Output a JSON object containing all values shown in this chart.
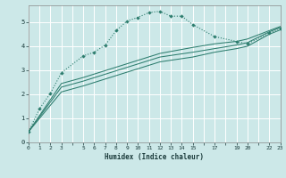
{
  "bg_color": "#cce8e8",
  "grid_color": "#ffffff",
  "grid_color_minor": "#e8d8d8",
  "line_color": "#2d7d6e",
  "xlabel": "Humidex (Indice chaleur)",
  "xlim": [
    0,
    23
  ],
  "ylim": [
    0,
    5.7
  ],
  "xtick_positions": [
    0,
    1,
    2,
    3,
    4,
    5,
    6,
    7,
    8,
    9,
    10,
    11,
    12,
    13,
    14,
    15,
    16,
    17,
    18,
    19,
    20,
    21,
    22,
    23
  ],
  "xtick_labels": [
    "0",
    "1",
    "2",
    "3",
    "",
    "5",
    "6",
    "7",
    "8",
    "9",
    "10",
    "11",
    "12",
    "13",
    "14",
    "15",
    "",
    "17",
    "",
    "19",
    "20",
    "",
    "22",
    "23"
  ],
  "ytick_positions": [
    0,
    1,
    2,
    3,
    4,
    5
  ],
  "ytick_labels": [
    "0",
    "1",
    "2",
    "3",
    "4",
    "5"
  ],
  "line1_x": [
    0,
    1,
    2,
    3,
    5,
    6,
    7,
    8,
    9,
    10,
    11,
    12,
    13,
    14,
    15,
    17,
    19,
    20,
    22,
    23
  ],
  "line1_y": [
    0.45,
    1.4,
    2.05,
    2.9,
    3.6,
    3.75,
    4.05,
    4.65,
    5.05,
    5.2,
    5.4,
    5.45,
    5.25,
    5.25,
    4.9,
    4.4,
    4.2,
    4.1,
    4.55,
    4.75
  ],
  "line2_x": [
    0,
    3,
    5,
    12,
    15,
    17,
    19,
    20,
    22,
    23
  ],
  "line2_y": [
    0.45,
    2.3,
    2.55,
    3.55,
    3.75,
    3.9,
    4.05,
    4.15,
    4.6,
    4.78
  ],
  "line3_x": [
    0,
    3,
    5,
    12,
    15,
    17,
    19,
    20,
    22,
    23
  ],
  "line3_y": [
    0.45,
    2.1,
    2.35,
    3.35,
    3.55,
    3.75,
    3.9,
    4.0,
    4.5,
    4.68
  ],
  "line4_x": [
    0,
    3,
    5,
    12,
    15,
    17,
    19,
    20,
    22,
    23
  ],
  "line4_y": [
    0.45,
    2.45,
    2.7,
    3.7,
    3.95,
    4.1,
    4.2,
    4.3,
    4.65,
    4.82
  ]
}
